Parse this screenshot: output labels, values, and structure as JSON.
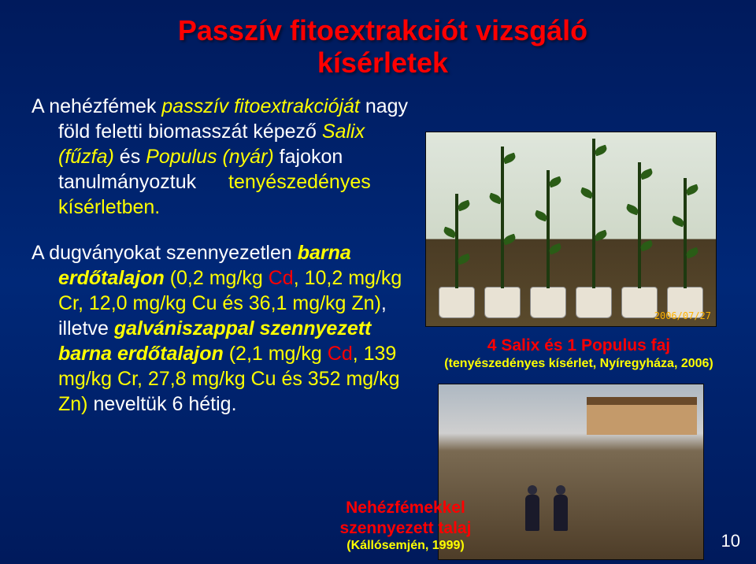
{
  "title": {
    "text_line1": "Passzív fitoextrakciót vizsgáló",
    "text_line2": "kísérletek",
    "color": "#ff0000",
    "fontsize": 36
  },
  "left_paragraph_1": {
    "fontsize": 25,
    "color_main": "#ffffff",
    "color_accent": "#ffff00",
    "t1": "A nehézfémek ",
    "t2_italic_yellow": "passzív fitoextrakcióját",
    "t3": " nagy föld feletti biomasszát képező ",
    "t4_italic_yellow": "Salix (fűzfa)",
    "t5": " és ",
    "t6_italic_yellow": "Populus (nyár)",
    "t7": " fajokon tanulmányoztuk ",
    "t8_yellow": "tenyészedényes kísérletben."
  },
  "left_paragraph_2": {
    "fontsize": 25,
    "t1": "A dugványokat szennyezetlen ",
    "t2_ib_yellow": "barna erdőtalajon",
    "t3_yellow": " (0,2 mg/kg ",
    "t4_red": "Cd",
    "t5_yellow": ", 10,2 mg/kg Cr, 12,0 mg/kg Cu és 36,1 mg/kg Zn)",
    "t6": ", illetve ",
    "t7_ib_yellow": "galvániszappal szennyezett barna erdőtalajon",
    "t8_yellow": " (2,1 mg/kg ",
    "t9_red": "Cd",
    "t10_yellow": ", 139 mg/kg Cr, 27,8 mg/kg Cu és 352 mg/kg Zn) ",
    "t11": "neveltük 6 hétig."
  },
  "photo1": {
    "timestamp": "2006/07/27",
    "timestamp_color": "#ffb200",
    "plant_heights": [
      120,
      180,
      150,
      190,
      160,
      140
    ],
    "pot_color": "#e8e2d4",
    "bg_top": "#dfe6dc",
    "bg_bottom": "#5a4a2c"
  },
  "caption1": {
    "line1": "4 Salix és 1 Populus faj",
    "line1_color": "#ff0000",
    "line1_fontsize": 21,
    "line2": "(tenyészedényes kísérlet, Nyíregyháza, 2006)",
    "line2_color": "#ffff00",
    "line2_fontsize": 16
  },
  "photo2": {
    "person_positions": [
      110,
      146
    ],
    "building_color": "#c49a6a"
  },
  "caption2": {
    "line1": "Nehézfémekkel",
    "line2": "szennyezett talaj",
    "line3": "(Kállósemjén, 1999)",
    "line12_color": "#ff0000",
    "line12_fontsize": 21,
    "line3_color": "#ffff00",
    "line3_fontsize": 16
  },
  "page_number": "10",
  "colors": {
    "background": "#001a66",
    "red": "#ff0000",
    "yellow": "#ffff00",
    "white": "#ffffff"
  }
}
